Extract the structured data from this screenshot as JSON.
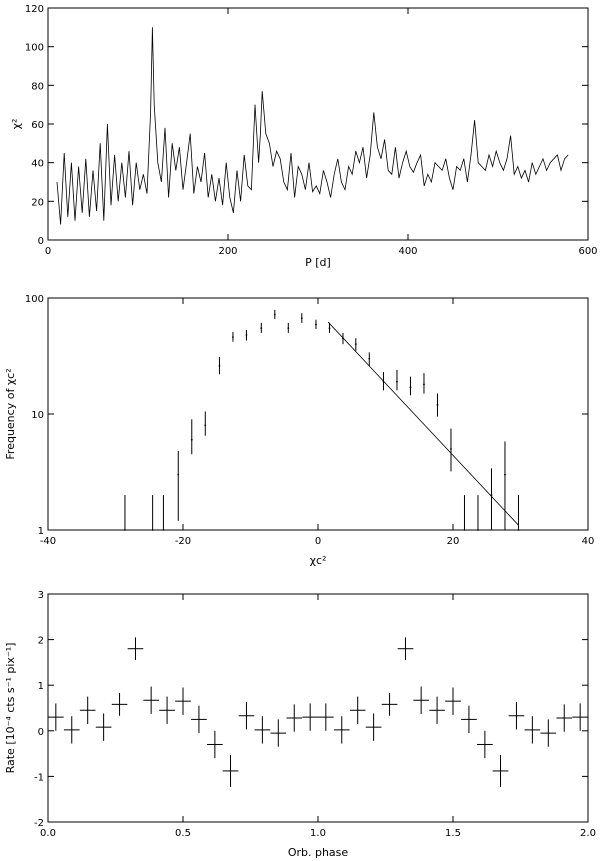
{
  "chart_data": [
    {
      "type": "line",
      "xlabel": "P [d]",
      "ylabel": "χ²",
      "xlim": [
        0,
        600
      ],
      "ylim": [
        0,
        120
      ],
      "xticks": [
        0,
        200,
        400,
        600
      ],
      "yticks": [
        0,
        20,
        40,
        60,
        80,
        100,
        120
      ],
      "xtick_labels": [
        "0",
        "200",
        "400",
        "600"
      ],
      "ytick_labels": [
        "0",
        "20",
        "40",
        "60",
        "80",
        "100",
        "120"
      ],
      "series": [
        {
          "x": [
            10,
            14,
            18,
            22,
            26,
            30,
            34,
            38,
            42,
            46,
            50,
            54,
            58,
            62,
            66,
            70,
            74,
            78,
            82,
            86,
            90,
            94,
            98,
            102,
            106,
            110,
            114,
            116,
            118,
            122,
            126,
            130,
            134,
            138,
            142,
            146,
            150,
            154,
            158,
            162,
            166,
            170,
            174,
            178,
            182,
            186,
            190,
            194,
            198,
            202,
            206,
            210,
            214,
            218,
            222,
            226,
            230,
            234,
            236,
            238,
            242,
            246,
            250,
            254,
            258,
            262,
            266,
            270,
            274,
            278,
            282,
            286,
            290,
            294,
            298,
            302,
            306,
            310,
            314,
            318,
            322,
            326,
            330,
            334,
            338,
            342,
            346,
            350,
            354,
            358,
            362,
            366,
            370,
            374,
            378,
            382,
            386,
            390,
            394,
            398,
            402,
            406,
            410,
            414,
            418,
            422,
            426,
            430,
            434,
            438,
            442,
            446,
            450,
            454,
            458,
            462,
            466,
            470,
            474,
            478,
            482,
            486,
            490,
            494,
            498,
            502,
            506,
            510,
            514,
            518,
            522,
            526,
            530,
            534,
            538,
            542,
            546,
            550,
            554,
            558,
            562,
            566,
            570,
            574,
            578
          ],
          "y": [
            30,
            8,
            45,
            12,
            40,
            10,
            38,
            14,
            42,
            12,
            36,
            15,
            50,
            10,
            60,
            18,
            44,
            20,
            40,
            22,
            46,
            18,
            40,
            26,
            34,
            24,
            66,
            110,
            70,
            40,
            30,
            58,
            22,
            50,
            36,
            48,
            26,
            40,
            55,
            24,
            38,
            30,
            45,
            22,
            34,
            20,
            32,
            18,
            40,
            22,
            14,
            36,
            20,
            44,
            28,
            26,
            70,
            40,
            55,
            77,
            55,
            50,
            38,
            46,
            42,
            30,
            26,
            45,
            22,
            38,
            34,
            26,
            40,
            25,
            28,
            24,
            36,
            30,
            22,
            34,
            42,
            30,
            26,
            38,
            34,
            46,
            40,
            48,
            32,
            44,
            66,
            48,
            42,
            52,
            36,
            34,
            48,
            32,
            40,
            46,
            38,
            35,
            40,
            44,
            28,
            34,
            30,
            40,
            38,
            36,
            42,
            32,
            26,
            38,
            36,
            42,
            30,
            44,
            62,
            40,
            38,
            36,
            44,
            38,
            46,
            40,
            36,
            42,
            54,
            34,
            38,
            32,
            36,
            30,
            40,
            34,
            38,
            42,
            36,
            40,
            42,
            44,
            36,
            42,
            44
          ]
        }
      ]
    },
    {
      "type": "scatter",
      "xlabel": "χc²",
      "ylabel": "Frequency of χc²",
      "xlim": [
        -40,
        40
      ],
      "ylim": [
        1,
        100
      ],
      "log_y": true,
      "xticks": [
        -40,
        -20,
        0,
        20,
        40
      ],
      "yticks": [
        1,
        10,
        100
      ],
      "xtick_labels": [
        "-40",
        "-20",
        "0",
        "20",
        "40"
      ],
      "ytick_labels": [
        "1",
        "10",
        "100"
      ],
      "points": [
        {
          "x": -28.6,
          "y": 1.0,
          "hi": 2.0
        },
        {
          "x": -24.5,
          "y": 1.0,
          "hi": 2.0
        },
        {
          "x": -22.9,
          "y": 1.0,
          "hi": 2.0
        },
        {
          "x": -20.7,
          "y": 3.0,
          "lo": 1.2,
          "hi": 4.8
        },
        {
          "x": -18.7,
          "y": 6.0,
          "lo": 4.5,
          "hi": 9.0
        },
        {
          "x": -16.7,
          "y": 8.0,
          "lo": 6.5,
          "hi": 10.5
        },
        {
          "x": -14.6,
          "y": 26.0,
          "lo": 22.0,
          "hi": 31.0
        },
        {
          "x": -12.6,
          "y": 46.0,
          "lo": 42.0,
          "hi": 51.0
        },
        {
          "x": -10.6,
          "y": 48.0,
          "lo": 43.0,
          "hi": 53.0
        },
        {
          "x": -8.4,
          "y": 55.0,
          "lo": 50.0,
          "hi": 61.0
        },
        {
          "x": -6.4,
          "y": 72.0,
          "lo": 66.0,
          "hi": 79.0
        },
        {
          "x": -4.4,
          "y": 55.0,
          "lo": 50.0,
          "hi": 61.0
        },
        {
          "x": -2.4,
          "y": 67.0,
          "lo": 61.0,
          "hi": 74.0
        },
        {
          "x": -0.3,
          "y": 59.0,
          "lo": 54.0,
          "hi": 65.0
        },
        {
          "x": 1.7,
          "y": 55.0,
          "lo": 50.0,
          "hi": 61.0
        },
        {
          "x": 3.7,
          "y": 45.0,
          "lo": 40.0,
          "hi": 50.0
        },
        {
          "x": 5.6,
          "y": 40.0,
          "lo": 35.0,
          "hi": 45.0
        },
        {
          "x": 7.6,
          "y": 30.0,
          "lo": 26.0,
          "hi": 34.0
        },
        {
          "x": 9.7,
          "y": 19.0,
          "lo": 16.0,
          "hi": 23.0
        },
        {
          "x": 11.7,
          "y": 19.0,
          "lo": 16.0,
          "hi": 24.0
        },
        {
          "x": 13.7,
          "y": 17.0,
          "lo": 14.5,
          "hi": 21.0
        },
        {
          "x": 15.7,
          "y": 18.0,
          "lo": 15.0,
          "hi": 22.5
        },
        {
          "x": 17.7,
          "y": 12.0,
          "lo": 9.5,
          "hi": 15.0
        },
        {
          "x": 19.7,
          "y": 5.0,
          "lo": 3.2,
          "hi": 7.5
        },
        {
          "x": 21.7,
          "y": 1.0,
          "hi": 2.0
        },
        {
          "x": 23.7,
          "y": 1.0,
          "hi": 2.0
        },
        {
          "x": 25.7,
          "y": 2.0,
          "lo": 1.0,
          "hi": 3.4
        },
        {
          "x": 27.7,
          "y": 3.0,
          "lo": 1.0,
          "hi": 5.8
        },
        {
          "x": 29.7,
          "y": 1.0,
          "hi": 2.0
        }
      ],
      "fit_line": {
        "x": [
          1.5,
          29.7
        ],
        "y": [
          62,
          1.1
        ]
      }
    },
    {
      "type": "scatter",
      "xlabel": "Orb. phase",
      "ylabel": "Rate [10⁻⁴ cts s⁻¹ pix⁻¹]",
      "xlim": [
        0.0,
        2.0
      ],
      "ylim": [
        -2,
        3
      ],
      "xticks": [
        0.0,
        0.5,
        1.0,
        1.5,
        2.0
      ],
      "yticks": [
        -2,
        -1,
        0,
        1,
        2,
        3
      ],
      "xtick_labels": [
        "0.0",
        "0.5",
        "1.0",
        "1.5",
        "2.0"
      ],
      "ytick_labels": [
        "-2",
        "-1",
        "0",
        "1",
        "2",
        "3"
      ],
      "points": [
        {
          "x": 0.029,
          "y": 0.3,
          "xerr": 0.029,
          "yerr": 0.3
        },
        {
          "x": 0.088,
          "y": 0.02,
          "xerr": 0.029,
          "yerr": 0.3
        },
        {
          "x": 0.147,
          "y": 0.45,
          "xerr": 0.029,
          "yerr": 0.3
        },
        {
          "x": 0.206,
          "y": 0.08,
          "xerr": 0.029,
          "yerr": 0.3
        },
        {
          "x": 0.265,
          "y": 0.58,
          "xerr": 0.029,
          "yerr": 0.25
        },
        {
          "x": 0.324,
          "y": 1.8,
          "xerr": 0.029,
          "yerr": 0.25
        },
        {
          "x": 0.382,
          "y": 0.67,
          "xerr": 0.029,
          "yerr": 0.3
        },
        {
          "x": 0.441,
          "y": 0.45,
          "xerr": 0.029,
          "yerr": 0.3
        },
        {
          "x": 0.5,
          "y": 0.65,
          "xerr": 0.029,
          "yerr": 0.3
        },
        {
          "x": 0.559,
          "y": 0.25,
          "xerr": 0.029,
          "yerr": 0.3
        },
        {
          "x": 0.618,
          "y": -0.3,
          "xerr": 0.029,
          "yerr": 0.3
        },
        {
          "x": 0.676,
          "y": -0.88,
          "xerr": 0.029,
          "yerr": 0.35
        },
        {
          "x": 0.735,
          "y": 0.33,
          "xerr": 0.029,
          "yerr": 0.3
        },
        {
          "x": 0.794,
          "y": 0.02,
          "xerr": 0.029,
          "yerr": 0.3
        },
        {
          "x": 0.853,
          "y": -0.05,
          "xerr": 0.029,
          "yerr": 0.3
        },
        {
          "x": 0.912,
          "y": 0.28,
          "xerr": 0.029,
          "yerr": 0.3
        },
        {
          "x": 0.971,
          "y": 0.3,
          "xerr": 0.029,
          "yerr": 0.3
        },
        {
          "x": 1.029,
          "y": 0.3,
          "xerr": 0.029,
          "yerr": 0.3
        },
        {
          "x": 1.088,
          "y": 0.02,
          "xerr": 0.029,
          "yerr": 0.3
        },
        {
          "x": 1.147,
          "y": 0.45,
          "xerr": 0.029,
          "yerr": 0.3
        },
        {
          "x": 1.206,
          "y": 0.08,
          "xerr": 0.029,
          "yerr": 0.3
        },
        {
          "x": 1.265,
          "y": 0.58,
          "xerr": 0.029,
          "yerr": 0.25
        },
        {
          "x": 1.324,
          "y": 1.8,
          "xerr": 0.029,
          "yerr": 0.25
        },
        {
          "x": 1.382,
          "y": 0.67,
          "xerr": 0.029,
          "yerr": 0.3
        },
        {
          "x": 1.441,
          "y": 0.45,
          "xerr": 0.029,
          "yerr": 0.3
        },
        {
          "x": 1.5,
          "y": 0.65,
          "xerr": 0.029,
          "yerr": 0.3
        },
        {
          "x": 1.559,
          "y": 0.25,
          "xerr": 0.029,
          "yerr": 0.3
        },
        {
          "x": 1.618,
          "y": -0.3,
          "xerr": 0.029,
          "yerr": 0.3
        },
        {
          "x": 1.676,
          "y": -0.88,
          "xerr": 0.029,
          "yerr": 0.35
        },
        {
          "x": 1.735,
          "y": 0.33,
          "xerr": 0.029,
          "yerr": 0.3
        },
        {
          "x": 1.794,
          "y": 0.02,
          "xerr": 0.029,
          "yerr": 0.3
        },
        {
          "x": 1.853,
          "y": -0.05,
          "xerr": 0.029,
          "yerr": 0.3
        },
        {
          "x": 1.912,
          "y": 0.28,
          "xerr": 0.029,
          "yerr": 0.3
        },
        {
          "x": 1.971,
          "y": 0.3,
          "xerr": 0.029,
          "yerr": 0.3
        }
      ]
    }
  ]
}
